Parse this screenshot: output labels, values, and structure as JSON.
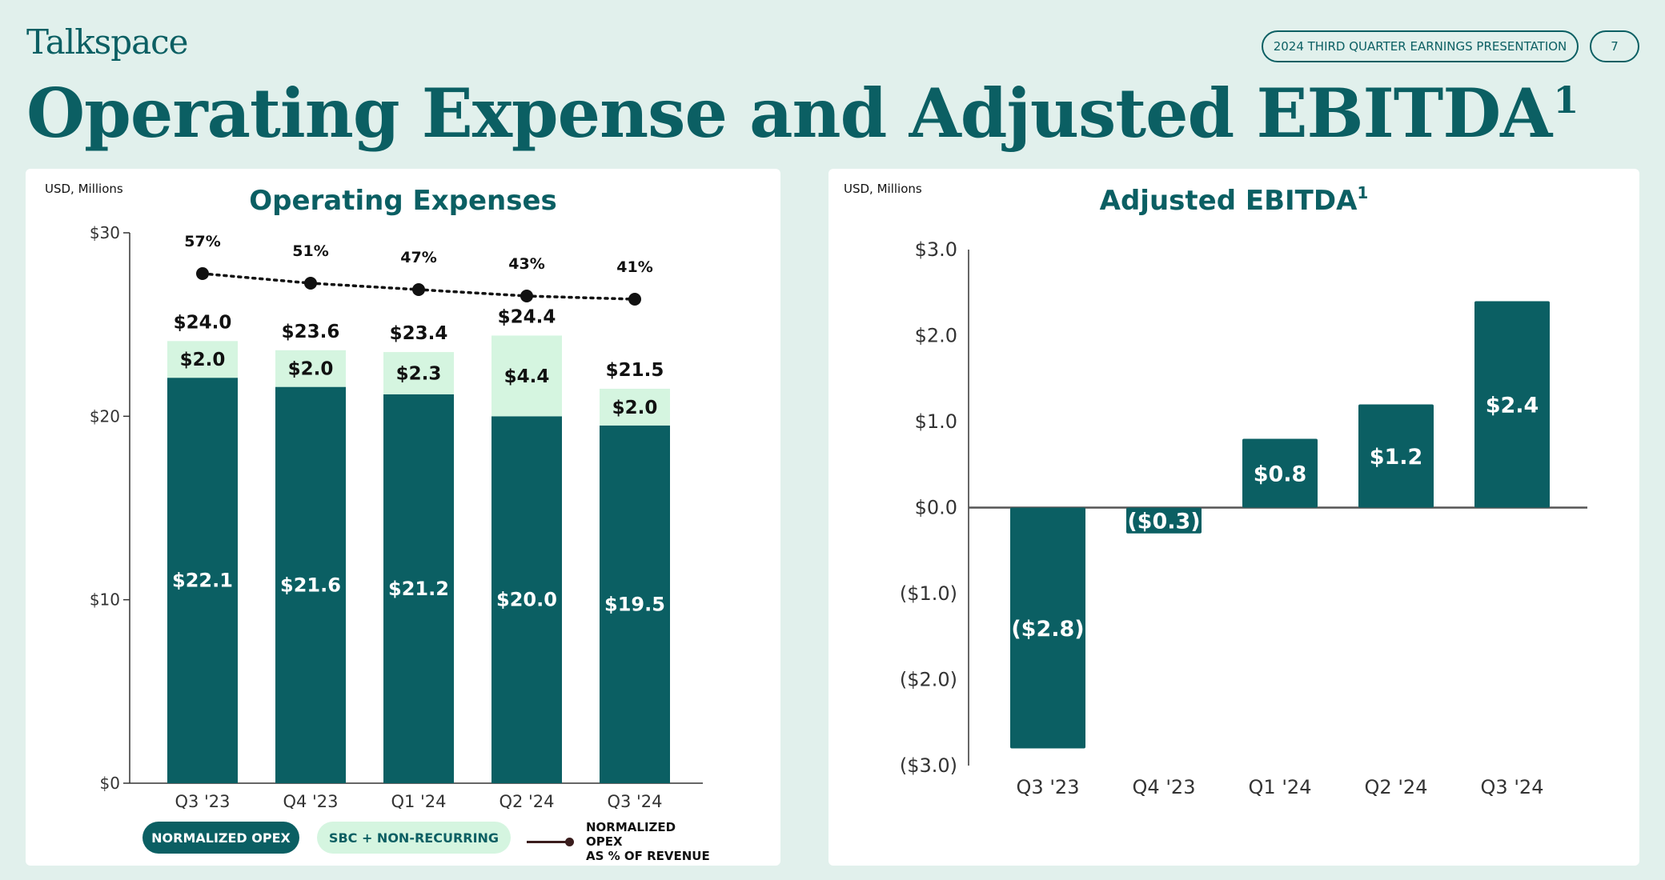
{
  "header": {
    "logo": "Talkspace",
    "presentation_label": "2024 THIRD QUARTER EARNINGS PRESENTATION",
    "page_number": "7",
    "title": "Operating Expense and Adjusted EBITDA",
    "title_footnote": "1"
  },
  "colors": {
    "primary": "#0b5f63",
    "secondary": "#d5f5e0",
    "background": "#e1f0ec",
    "line": "#111111"
  },
  "left_panel": {
    "units": "USD, Millions",
    "legend": {
      "opex": "NORMALIZED OPEX",
      "sbc": "SBC + NON-RECURRING",
      "line_1": "NORMALIZED OPEX",
      "line_2": "AS % OF REVENUE"
    }
  },
  "right_panel": {
    "units": "USD, Millions"
  },
  "chart_data": [
    {
      "type": "bar",
      "stacked": true,
      "title": "Operating Expenses",
      "categories": [
        "Q3 '23",
        "Q4 '23",
        "Q1 '24",
        "Q2 '24",
        "Q3 '24"
      ],
      "yticks": [
        "$0",
        "$10",
        "$20",
        "$30"
      ],
      "ylim": [
        0,
        30
      ],
      "series": [
        {
          "name": "NORMALIZED OPEX",
          "values": [
            22.1,
            21.6,
            21.2,
            20.0,
            19.5
          ],
          "labels": [
            "$22.1",
            "$21.6",
            "$21.2",
            "$20.0",
            "$19.5"
          ]
        },
        {
          "name": "SBC + NON-RECURRING",
          "values": [
            2.0,
            2.0,
            2.3,
            4.4,
            2.0
          ],
          "labels": [
            "$2.0",
            "$2.0",
            "$2.3",
            "$4.4",
            "$2.0"
          ]
        }
      ],
      "totals": [
        "$24.0",
        "$23.6",
        "$23.4",
        "$24.4",
        "$21.5"
      ],
      "line": {
        "name": "NORMALIZED OPEX AS % OF REVENUE",
        "values": [
          57,
          51,
          47,
          43,
          41
        ],
        "labels": [
          "57%",
          "51%",
          "47%",
          "43%",
          "41%"
        ]
      }
    },
    {
      "type": "bar",
      "title": "Adjusted EBITDA",
      "title_footnote": "1",
      "categories": [
        "Q3 '23",
        "Q4 '23",
        "Q1 '24",
        "Q2 '24",
        "Q3 '24"
      ],
      "values": [
        -2.8,
        -0.3,
        0.8,
        1.2,
        2.4
      ],
      "labels": [
        "($2.8)",
        "($0.3)",
        "$0.8",
        "$1.2",
        "$2.4"
      ],
      "yticks": [
        "($3.0)",
        "($2.0)",
        "($1.0)",
        "$0.0",
        "$1.0",
        "$2.0",
        "$3.0"
      ],
      "ylim": [
        -3,
        3
      ]
    }
  ]
}
